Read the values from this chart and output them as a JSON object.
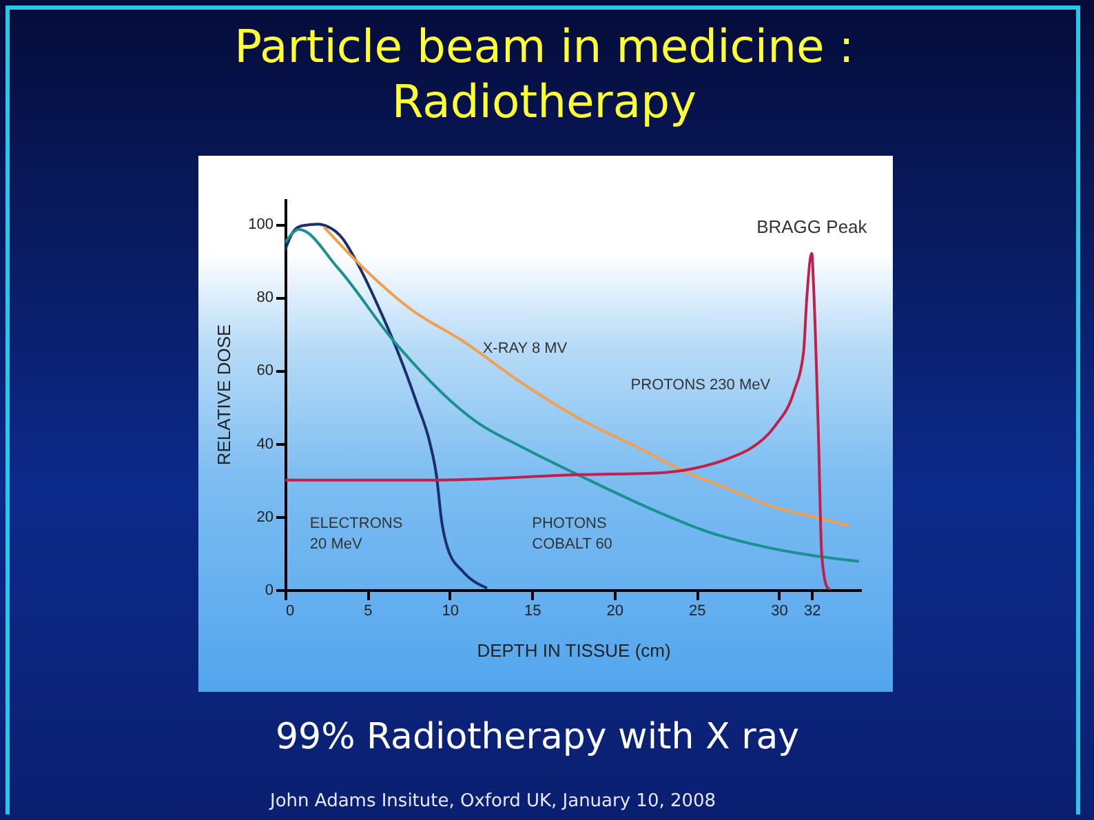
{
  "chart_data": {
    "type": "line",
    "title": "Particle beam in medicine : Radiotherapy",
    "xlabel": "DEPTH IN TISSUE (cm)",
    "ylabel": "RELATIVE DOSE",
    "xlim": [
      0,
      35
    ],
    "ylim": [
      0,
      107
    ],
    "xticks": [
      0,
      5,
      10,
      15,
      20,
      25,
      30,
      32
    ],
    "yticks": [
      0,
      20,
      40,
      60,
      80,
      100
    ],
    "grid": false,
    "legend": false,
    "marker": "none",
    "line_style": "solid",
    "series": [
      {
        "name": "ELECTRONS 20 MeV",
        "color": "#1a2f6b",
        "x": [
          0,
          0.5,
          1,
          2,
          2.5,
          3.5,
          4.3,
          6,
          6.85,
          8,
          8.8,
          9.2,
          9.5,
          9.9,
          10.8,
          12.2
        ],
        "values": [
          93,
          98,
          99.5,
          100,
          99.5,
          96,
          90,
          74,
          65,
          51,
          40,
          31,
          19,
          11,
          5,
          0.6
        ]
      },
      {
        "name": "PHOTONS COBALT 60",
        "color": "#1a9090",
        "x": [
          0,
          0.84,
          3.2,
          6.6,
          11.6,
          14.4,
          18,
          22.8,
          25.6,
          28.4,
          32,
          34.8
        ],
        "values": [
          95,
          98.5,
          88,
          68,
          46,
          39,
          31,
          21,
          16,
          12.5,
          9.4,
          7.8
        ]
      },
      {
        "name": "X-RAY 8 MV",
        "color": "#f0a050",
        "x": [
          2.4,
          4.3,
          7.7,
          10.8,
          14.4,
          18,
          21.4,
          24.2,
          27,
          29.8,
          32.6,
          34.2
        ],
        "values": [
          99,
          90,
          76.5,
          68,
          56.5,
          46.5,
          39,
          32.5,
          27.5,
          22.5,
          19.5,
          17.5
        ]
      },
      {
        "name": "PROTONS 230 MeV",
        "color": "#c0204a",
        "x": [
          0,
          8.8,
          18,
          22.8,
          25.6,
          27,
          28.4,
          29.8,
          30.9,
          31.5,
          31.7,
          32,
          32.1,
          32.4,
          32.6,
          32.9,
          33.1
        ],
        "values": [
          30,
          30,
          31.5,
          32,
          34,
          36,
          39,
          45,
          54,
          65,
          80,
          92,
          84,
          43,
          10,
          1,
          0
        ]
      }
    ],
    "annotations": [
      {
        "text": "BRAGG Peak",
        "x": 32,
        "y": 92
      },
      "99% Radiotherapy with X ray",
      "John Adams Insitute, Oxford UK, January 10, 2008"
    ]
  }
}
